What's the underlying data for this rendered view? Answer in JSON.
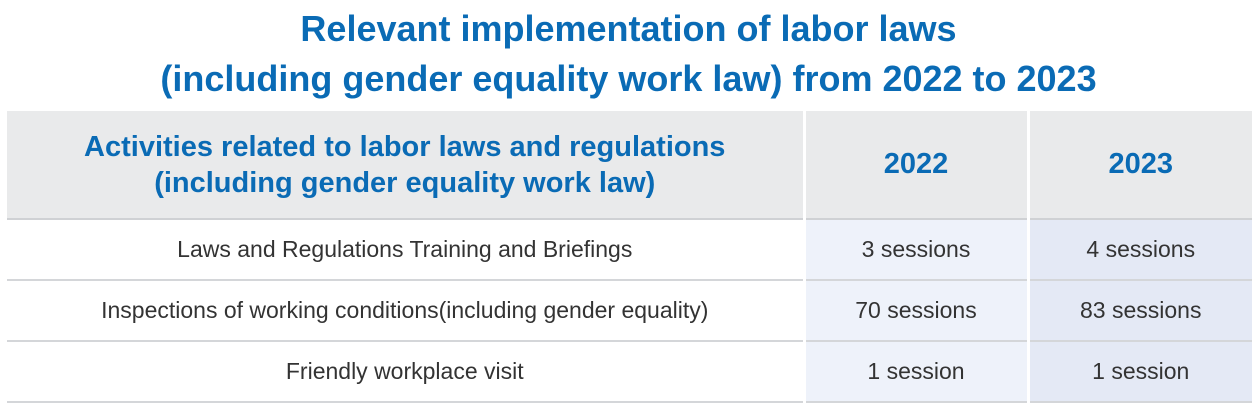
{
  "title": {
    "line1": "Relevant implementation of labor laws",
    "line2": "(including gender equality work law) from 2022 to 2023"
  },
  "table": {
    "header": {
      "activity_line1": "Activities related to labor laws and regulations",
      "activity_line2": "(including gender equality work law)",
      "year1": "2022",
      "year2": "2023"
    },
    "rows": [
      {
        "activity": "Laws and Regulations Training and Briefings",
        "y2022": "3 sessions",
        "y2023": "4 sessions"
      },
      {
        "activity": "Inspections of working conditions(including gender equality)",
        "y2022": "70 sessions",
        "y2023": "83 sessions"
      },
      {
        "activity": "Friendly workplace visit",
        "y2022": "1 session",
        "y2023": "1 session"
      }
    ]
  },
  "colors": {
    "title": "#0a6bb5",
    "header_bg": "#e9eaeb",
    "col2022_bg": "#eef2fa",
    "col2023_bg": "#e4e9f5"
  }
}
